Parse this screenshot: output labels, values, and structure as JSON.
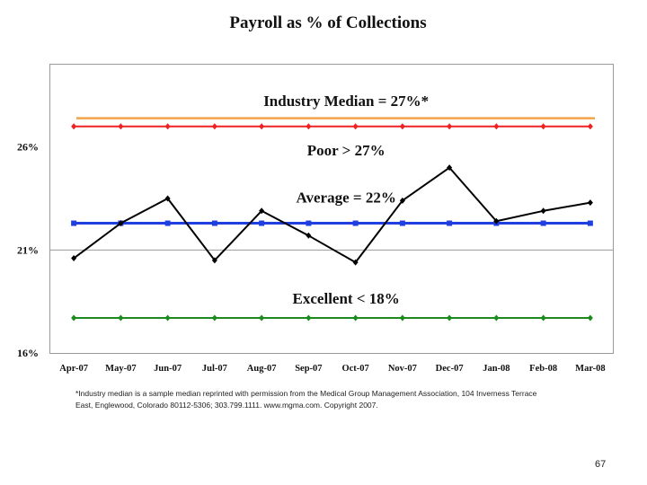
{
  "slide": {
    "title": "Payroll as % of Collections",
    "footnote_line1": "*Industry median is a sample median reprinted with permission from the Medical Group Management Association, 104 Inverness Terrace",
    "footnote_line2": "East, Englewood, Colorado 80112-5306; 303.799.1111.  www.mgma.com.  Copyright 2007.",
    "page_number": "67"
  },
  "chart_data": {
    "type": "line",
    "title": "Payroll as % of Collections",
    "xlabel": "",
    "ylabel": "",
    "categories": [
      "Apr-07",
      "May-07",
      "Jun-07",
      "Jul-07",
      "Aug-07",
      "Sep-07",
      "Oct-07",
      "Nov-07",
      "Dec-07",
      "Jan-08",
      "Feb-08",
      "Mar-08"
    ],
    "ylim": [
      16,
      30
    ],
    "yticks": [
      16,
      21,
      26
    ],
    "ytick_labels": [
      "16%",
      "21%",
      "26%"
    ],
    "gridlines": [
      21
    ],
    "series": [
      {
        "values": [
          20.6,
          22.3,
          23.5,
          20.5,
          22.9,
          21.7,
          20.4,
          23.4,
          25.0,
          22.4,
          22.9,
          23.3
        ],
        "color": "#000000",
        "marker": "diamond",
        "width": 2
      },
      {
        "values": [
          27,
          27,
          27,
          27,
          27,
          27,
          27,
          27,
          27,
          27,
          27,
          27
        ],
        "color": "#ee2222",
        "marker": "diamond",
        "width": 2
      },
      {
        "values": [
          22.3,
          22.3,
          22.3,
          22.3,
          22.3,
          22.3,
          22.3,
          22.3,
          22.3,
          22.3,
          22.3,
          22.3
        ],
        "color": "#1f3fe0",
        "marker": "square",
        "width": 3
      },
      {
        "values": [
          17.7,
          17.7,
          17.7,
          17.7,
          17.7,
          17.7,
          17.7,
          17.7,
          17.7,
          17.7,
          17.7,
          17.7
        ],
        "color": "#1c8a1c",
        "marker": "diamond",
        "width": 2
      }
    ],
    "reference_line": {
      "value": 27.4,
      "color": "#f2a24a"
    },
    "annotations": [
      {
        "text": "Industry Median = 27%*",
        "x_index": 5.8,
        "y": 28.0
      },
      {
        "text": "Poor > 27%",
        "x_index": 5.8,
        "y": 25.6
      },
      {
        "text": "Average = 22%",
        "x_index": 5.8,
        "y": 23.3
      },
      {
        "text": "Excellent < 18%",
        "x_index": 5.8,
        "y": 18.4
      }
    ]
  }
}
